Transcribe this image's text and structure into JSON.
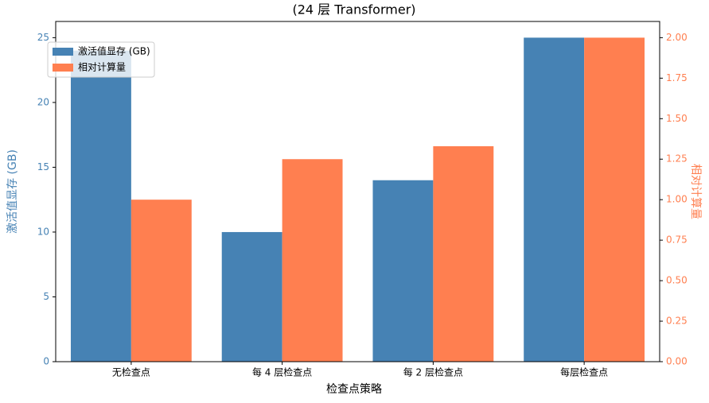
{
  "chart_data": {
    "type": "bar",
    "subtitle": "(24 层 Transformer)",
    "xlabel": "检查点策略",
    "ylabel": "激活值显存 (GB)",
    "y2label": "相对计算量",
    "categories": [
      "无检查点",
      "每 4 层检查点",
      "每 2 层检查点",
      "每层检查点"
    ],
    "series": [
      {
        "name": "激活值显存 (GB)",
        "color": "#4682b4",
        "values": [
          24,
          10,
          14,
          25
        ]
      },
      {
        "name": "相对计算量",
        "color": "#ff7f50",
        "axis": "y2",
        "values": [
          1.0,
          1.25,
          1.33,
          2.0
        ]
      }
    ],
    "ylim": [
      0,
      26.25
    ],
    "yticks": [
      0,
      5,
      10,
      15,
      20,
      25
    ],
    "y2lim": [
      0,
      2.1
    ],
    "y2ticks": [
      {
        "value": 0,
        "label": "0.00"
      },
      {
        "value": 0.25,
        "label": "0.25"
      },
      {
        "value": 0.5,
        "label": "0.50"
      },
      {
        "value": 0.75,
        "label": "0.75"
      },
      {
        "value": 1,
        "label": "1.00"
      },
      {
        "value": 1.25,
        "label": "1.25"
      },
      {
        "value": 1.5,
        "label": "1.50"
      },
      {
        "value": 1.75,
        "label": "1.75"
      },
      {
        "value": 2,
        "label": "2.00"
      }
    ],
    "legend": "upper left"
  }
}
